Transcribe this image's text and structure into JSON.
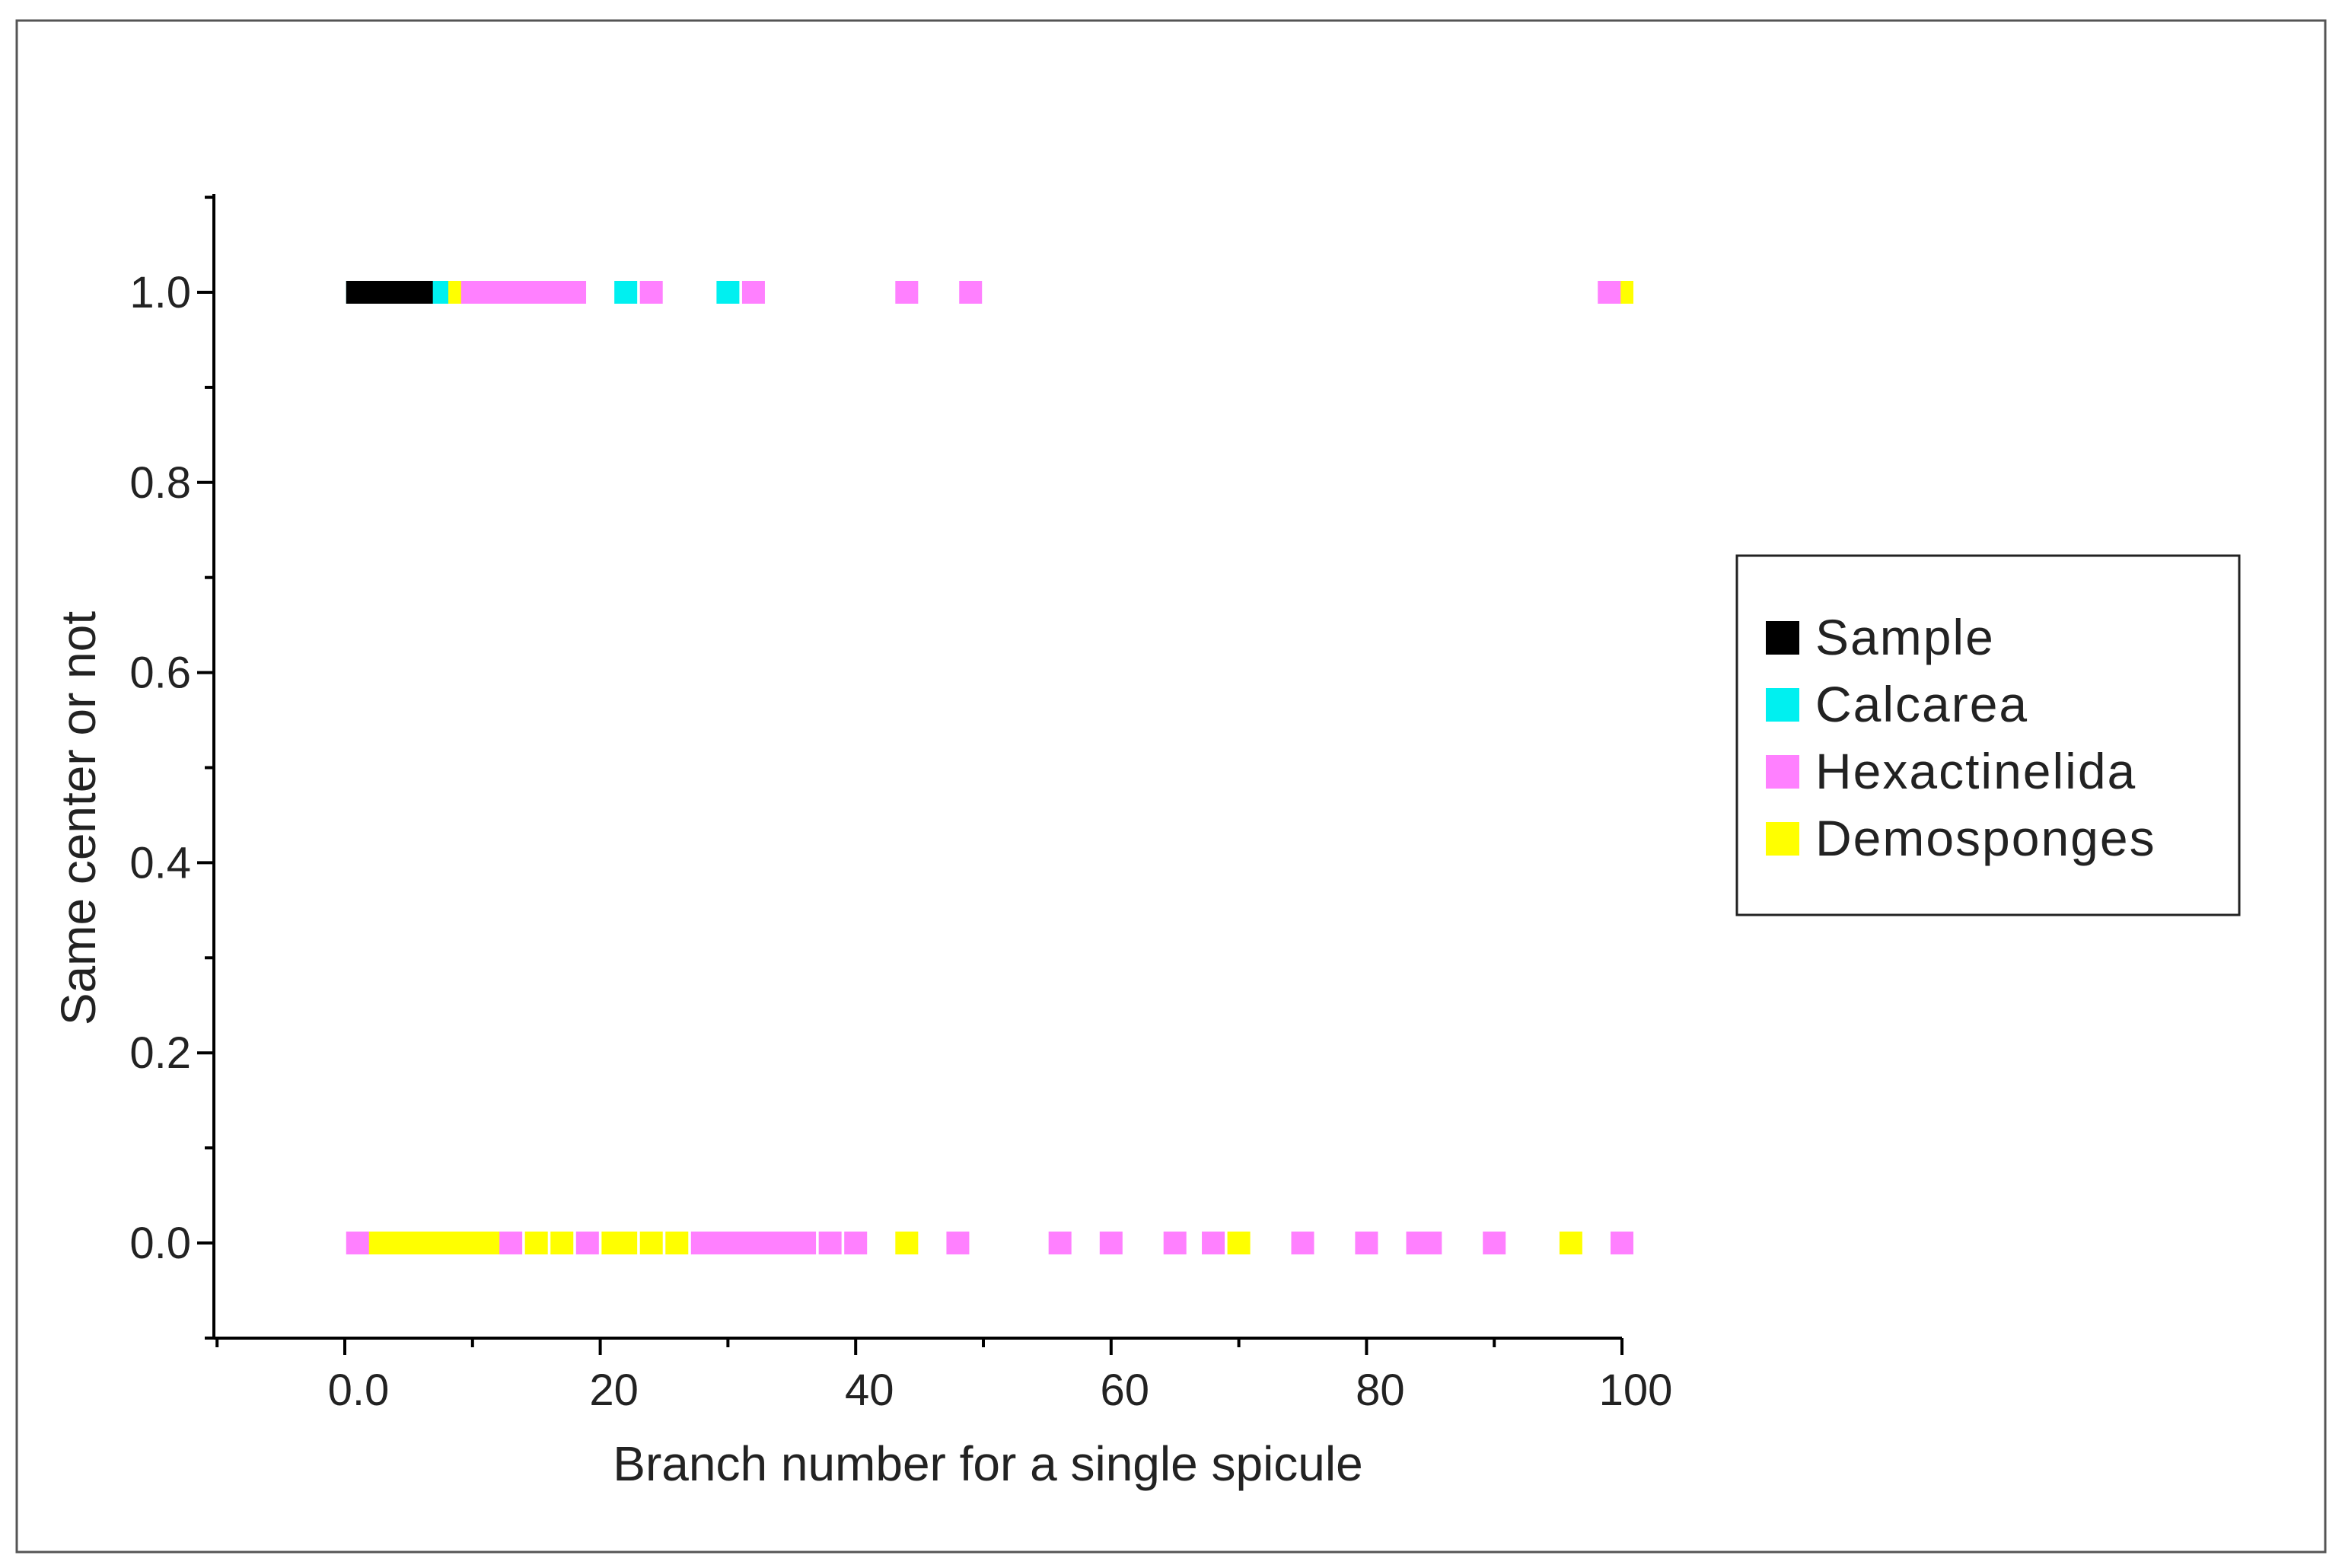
{
  "chart_data": {
    "type": "scatter",
    "title": "",
    "xlabel": "Branch number for a single spicule",
    "ylabel": "Same center or not",
    "xlim": [
      -10,
      100
    ],
    "ylim": [
      -0.1,
      1.1
    ],
    "x_ticks": [
      0,
      20,
      40,
      60,
      80,
      100
    ],
    "x_tick_labels": [
      "0.0",
      "20",
      "40",
      "60",
      "80",
      "100"
    ],
    "y_ticks": [
      0.0,
      0.2,
      0.4,
      0.6,
      0.8,
      1.0
    ],
    "y_tick_labels": [
      "0.0",
      "0.2",
      "0.4",
      "0.6",
      "0.8",
      "1.0"
    ],
    "grid": false,
    "legend_position": "right",
    "series": [
      {
        "name": "Calcarea",
        "color": "#00f0f0",
        "points": [
          {
            "x": 1,
            "y": 1
          },
          {
            "x": 2,
            "y": 1
          },
          {
            "x": 3,
            "y": 1
          },
          {
            "x": 4,
            "y": 1
          },
          {
            "x": 5,
            "y": 1
          },
          {
            "x": 6,
            "y": 1
          },
          {
            "x": 7,
            "y": 1
          },
          {
            "x": 8,
            "y": 1
          },
          {
            "x": 22,
            "y": 1
          },
          {
            "x": 30,
            "y": 1
          }
        ]
      },
      {
        "name": "Demosponges",
        "color": "#ffff00",
        "points": [
          {
            "x": 9,
            "y": 1
          },
          {
            "x": 100,
            "y": 1
          },
          {
            "x": 2,
            "y": 0
          },
          {
            "x": 3,
            "y": 0
          },
          {
            "x": 4,
            "y": 0
          },
          {
            "x": 5,
            "y": 0
          },
          {
            "x": 6,
            "y": 0
          },
          {
            "x": 7,
            "y": 0
          },
          {
            "x": 8,
            "y": 0
          },
          {
            "x": 9,
            "y": 0
          },
          {
            "x": 10,
            "y": 0
          },
          {
            "x": 11,
            "y": 0
          },
          {
            "x": 12,
            "y": 0
          },
          {
            "x": 15,
            "y": 0
          },
          {
            "x": 17,
            "y": 0
          },
          {
            "x": 21,
            "y": 0
          },
          {
            "x": 22,
            "y": 0
          },
          {
            "x": 24,
            "y": 0
          },
          {
            "x": 26,
            "y": 0
          },
          {
            "x": 44,
            "y": 0
          },
          {
            "x": 70,
            "y": 0
          },
          {
            "x": 96,
            "y": 0
          }
        ]
      },
      {
        "name": "Hexactinelida",
        "color": "#ff80ff",
        "points": [
          {
            "x": 10,
            "y": 1
          },
          {
            "x": 11,
            "y": 1
          },
          {
            "x": 12,
            "y": 1
          },
          {
            "x": 13,
            "y": 1
          },
          {
            "x": 14,
            "y": 1
          },
          {
            "x": 15,
            "y": 1
          },
          {
            "x": 16,
            "y": 1
          },
          {
            "x": 17,
            "y": 1
          },
          {
            "x": 18,
            "y": 1
          },
          {
            "x": 24,
            "y": 1
          },
          {
            "x": 32,
            "y": 1
          },
          {
            "x": 44,
            "y": 1
          },
          {
            "x": 49,
            "y": 1
          },
          {
            "x": 99,
            "y": 1
          },
          {
            "x": 1,
            "y": 0
          },
          {
            "x": 13,
            "y": 0
          },
          {
            "x": 19,
            "y": 0
          },
          {
            "x": 28,
            "y": 0
          },
          {
            "x": 29,
            "y": 0
          },
          {
            "x": 30,
            "y": 0
          },
          {
            "x": 31,
            "y": 0
          },
          {
            "x": 32,
            "y": 0
          },
          {
            "x": 33,
            "y": 0
          },
          {
            "x": 34,
            "y": 0
          },
          {
            "x": 35,
            "y": 0
          },
          {
            "x": 36,
            "y": 0
          },
          {
            "x": 38,
            "y": 0
          },
          {
            "x": 40,
            "y": 0
          },
          {
            "x": 48,
            "y": 0
          },
          {
            "x": 56,
            "y": 0
          },
          {
            "x": 60,
            "y": 0
          },
          {
            "x": 65,
            "y": 0
          },
          {
            "x": 68,
            "y": 0
          },
          {
            "x": 75,
            "y": 0
          },
          {
            "x": 80,
            "y": 0
          },
          {
            "x": 84,
            "y": 0
          },
          {
            "x": 85,
            "y": 0
          },
          {
            "x": 90,
            "y": 0
          },
          {
            "x": 100,
            "y": 0
          }
        ]
      },
      {
        "name": "Sample",
        "color": "#000000",
        "points": [
          {
            "x": 1,
            "y": 1
          },
          {
            "x": 2,
            "y": 1
          },
          {
            "x": 3,
            "y": 1
          },
          {
            "x": 4,
            "y": 1
          },
          {
            "x": 5,
            "y": 1
          },
          {
            "x": 6,
            "y": 1
          }
        ]
      }
    ],
    "legend": [
      "Sample",
      "Calcarea",
      "Hexactinelida",
      "Demosponges"
    ]
  }
}
